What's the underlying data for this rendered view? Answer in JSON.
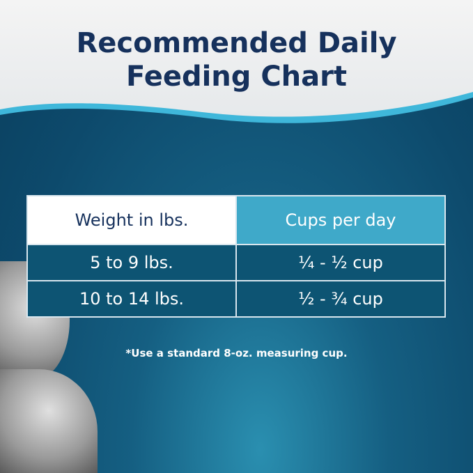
{
  "title_line1": "Recommended Daily",
  "title_line2": "Feeding Chart",
  "table": {
    "headers": [
      "Weight in lbs.",
      "Cups per day"
    ],
    "rows": [
      [
        "5 to 9 lbs.",
        "¼ - ½ cup"
      ],
      [
        "10 to 14 lbs.",
        "½ - ¾ cup"
      ]
    ]
  },
  "footnote": "*Use a standard 8-oz. measuring cup.",
  "colors": {
    "navy": "#16315c",
    "accent": "#3fa9c9",
    "background": "#0d4a6c"
  }
}
